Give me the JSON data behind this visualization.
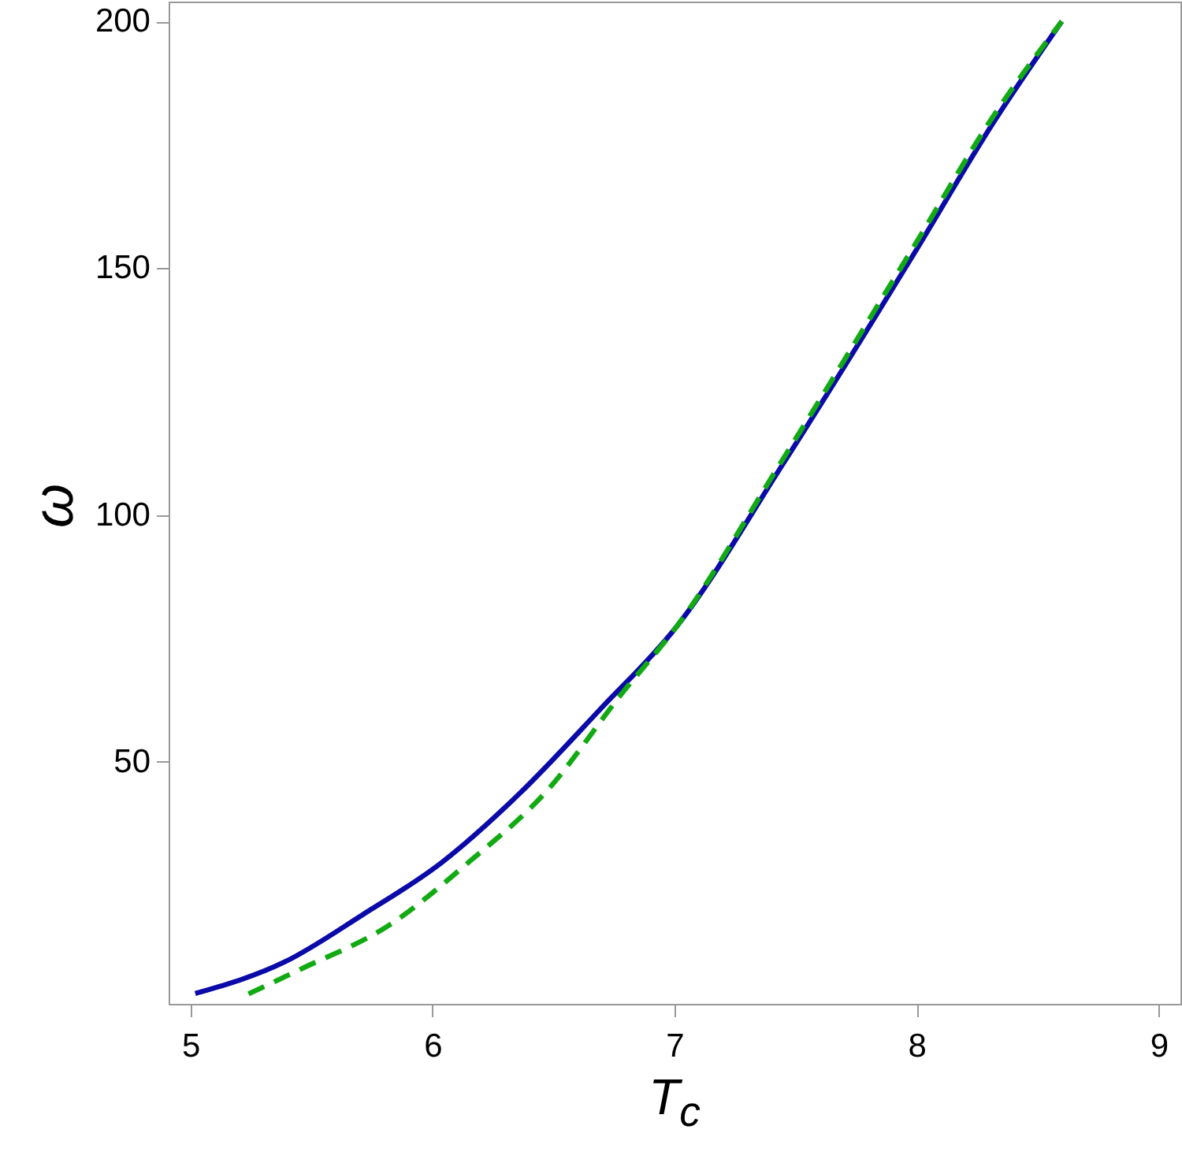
{
  "chart_data": {
    "type": "line",
    "xlabel": "T$_{c}$",
    "ylabel": "ω",
    "xlim": [
      4.91,
      9.09
    ],
    "ylim": [
      1,
      204
    ],
    "xticks": [
      5,
      6,
      7,
      8,
      9
    ],
    "yticks": [
      50,
      100,
      150,
      200
    ],
    "grid": false,
    "marker": "none",
    "series": [
      {
        "color": "#0a0aa8",
        "line_style": "solid",
        "x": [
          5.02,
          5.39,
          5.71,
          6.04,
          6.36,
          6.69,
          7.01,
          7.45,
          7.99,
          8.32,
          8.6
        ],
        "values": [
          3.1,
          9.5,
          19,
          29.7,
          43.6,
          60.5,
          77.5,
          110.5,
          153,
          179.7,
          200
        ]
      },
      {
        "color": "#12aa12",
        "line_style": "dashed",
        "x": [
          5.24,
          5.45,
          5.82,
          6.15,
          6.47,
          6.78,
          7.01,
          7.45,
          7.99,
          8.32,
          8.6
        ],
        "values": [
          3,
          7.9,
          16.9,
          29.7,
          44,
          63.7,
          77.5,
          111.5,
          154.5,
          181,
          200
        ]
      }
    ]
  }
}
